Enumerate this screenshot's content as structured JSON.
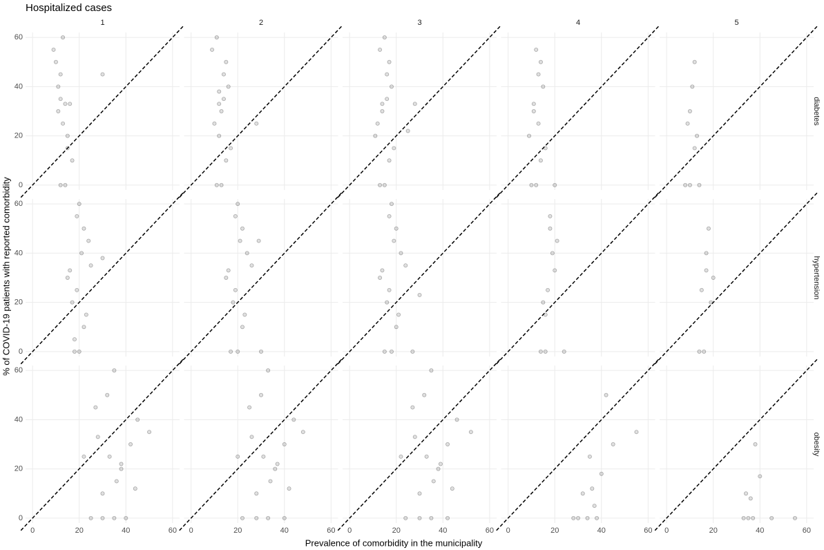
{
  "chart_data": {
    "type": "scatter",
    "title": "Hospitalized cases",
    "x_label": "Prevalence of comorbidity in the municipality",
    "y_label": "% of COVID-19 patients with reported comorbidity",
    "columns": [
      "1",
      "2",
      "3",
      "4",
      "5"
    ],
    "xlim": [
      -3,
      63
    ],
    "ylim": [
      -2,
      62
    ],
    "xticks": [
      0,
      20,
      40,
      60
    ],
    "yticks": [
      0,
      20,
      40,
      60
    ],
    "grid": true,
    "diagonal": true,
    "color": "#000000",
    "rows": [
      {
        "name": "diabetes",
        "panels": [
          {
            "x": [
              12,
              14,
              10,
              16,
              13,
              11,
              15,
              12,
              9,
              17,
              13,
              14,
              11,
              15,
              12,
              30
            ],
            "y": [
              0,
              0,
              50,
              33,
              25,
              40,
              20,
              45,
              55,
              10,
              60,
              33,
              30,
              15,
              35,
              45
            ]
          },
          {
            "x": [
              11,
              13,
              15,
              12,
              10,
              16,
              14,
              12,
              11,
              17,
              13,
              9,
              15,
              14,
              28,
              12
            ],
            "y": [
              0,
              0,
              50,
              33,
              25,
              40,
              45,
              20,
              60,
              15,
              30,
              55,
              10,
              35,
              25,
              38
            ]
          },
          {
            "x": [
              13,
              15,
              17,
              14,
              12,
              18,
              16,
              11,
              15,
              19,
              14,
              13,
              17,
              16,
              25,
              28
            ],
            "y": [
              0,
              0,
              50,
              33,
              25,
              40,
              45,
              20,
              60,
              15,
              30,
              55,
              10,
              35,
              22,
              33
            ]
          },
          {
            "x": [
              10,
              12,
              14,
              11,
              13,
              15,
              9,
              12,
              16,
              11,
              13,
              14,
              20
            ],
            "y": [
              0,
              0,
              50,
              33,
              25,
              40,
              20,
              55,
              15,
              30,
              45,
              10,
              0
            ]
          },
          {
            "x": [
              8,
              10,
              12,
              9,
              11,
              13,
              10,
              12,
              14
            ],
            "y": [
              0,
              0,
              50,
              25,
              40,
              20,
              30,
              15,
              0
            ]
          }
        ]
      },
      {
        "name": "hypertension",
        "panels": [
          {
            "x": [
              18,
              20,
              22,
              16,
              19,
              21,
              24,
              17,
              20,
              23,
              15,
              19,
              22,
              25,
              30,
              18
            ],
            "y": [
              0,
              0,
              50,
              33,
              25,
              40,
              45,
              20,
              60,
              15,
              30,
              55,
              10,
              35,
              38,
              5
            ]
          },
          {
            "x": [
              17,
              20,
              22,
              16,
              19,
              24,
              21,
              18,
              20,
              23,
              15,
              19,
              22,
              26,
              29,
              30
            ],
            "y": [
              0,
              0,
              50,
              33,
              25,
              40,
              45,
              20,
              60,
              15,
              30,
              55,
              10,
              35,
              45,
              0
            ]
          },
          {
            "x": [
              15,
              18,
              20,
              14,
              17,
              22,
              19,
              16,
              18,
              21,
              13,
              17,
              20,
              24,
              30,
              27
            ],
            "y": [
              0,
              0,
              50,
              33,
              25,
              40,
              45,
              20,
              60,
              15,
              30,
              55,
              10,
              35,
              23,
              0
            ]
          },
          {
            "x": [
              14,
              16,
              18,
              20,
              17,
              19,
              15,
              18,
              21,
              16,
              24
            ],
            "y": [
              0,
              0,
              50,
              33,
              25,
              40,
              20,
              55,
              45,
              15,
              0
            ]
          },
          {
            "x": [
              14,
              16,
              18,
              17,
              15,
              19,
              17,
              20
            ],
            "y": [
              0,
              0,
              50,
              33,
              25,
              20,
              40,
              30
            ]
          }
        ]
      },
      {
        "name": "obesity",
        "panels": [
          {
            "x": [
              25,
              30,
              35,
              40,
              28,
              33,
              38,
              45,
              32,
              36,
              42,
              30,
              27,
              50,
              35,
              38,
              44,
              22
            ],
            "y": [
              0,
              0,
              0,
              0,
              33,
              25,
              20,
              40,
              50,
              15,
              30,
              10,
              45,
              35,
              60,
              22,
              12,
              25
            ]
          },
          {
            "x": [
              22,
              28,
              33,
              40,
              26,
              31,
              36,
              44,
              30,
              34,
              40,
              28,
              25,
              48,
              33,
              37,
              42,
              20
            ],
            "y": [
              0,
              0,
              0,
              0,
              33,
              25,
              20,
              40,
              50,
              15,
              30,
              10,
              45,
              35,
              60,
              22,
              12,
              25
            ]
          },
          {
            "x": [
              24,
              30,
              35,
              42,
              28,
              33,
              38,
              46,
              32,
              36,
              42,
              30,
              27,
              52,
              35,
              39,
              44,
              22
            ],
            "y": [
              0,
              0,
              0,
              0,
              33,
              25,
              20,
              40,
              50,
              15,
              30,
              10,
              45,
              35,
              60,
              22,
              12,
              25
            ]
          },
          {
            "x": [
              30,
              34,
              38,
              36,
              40,
              32,
              35,
              42,
              45,
              37,
              28,
              55
            ],
            "y": [
              0,
              0,
              0,
              12,
              18,
              10,
              25,
              50,
              30,
              5,
              0,
              35
            ]
          },
          {
            "x": [
              33,
              35,
              37,
              34,
              36,
              40,
              45,
              55,
              38
            ],
            "y": [
              0,
              0,
              0,
              10,
              8,
              17,
              0,
              0,
              30
            ]
          }
        ]
      }
    ]
  }
}
